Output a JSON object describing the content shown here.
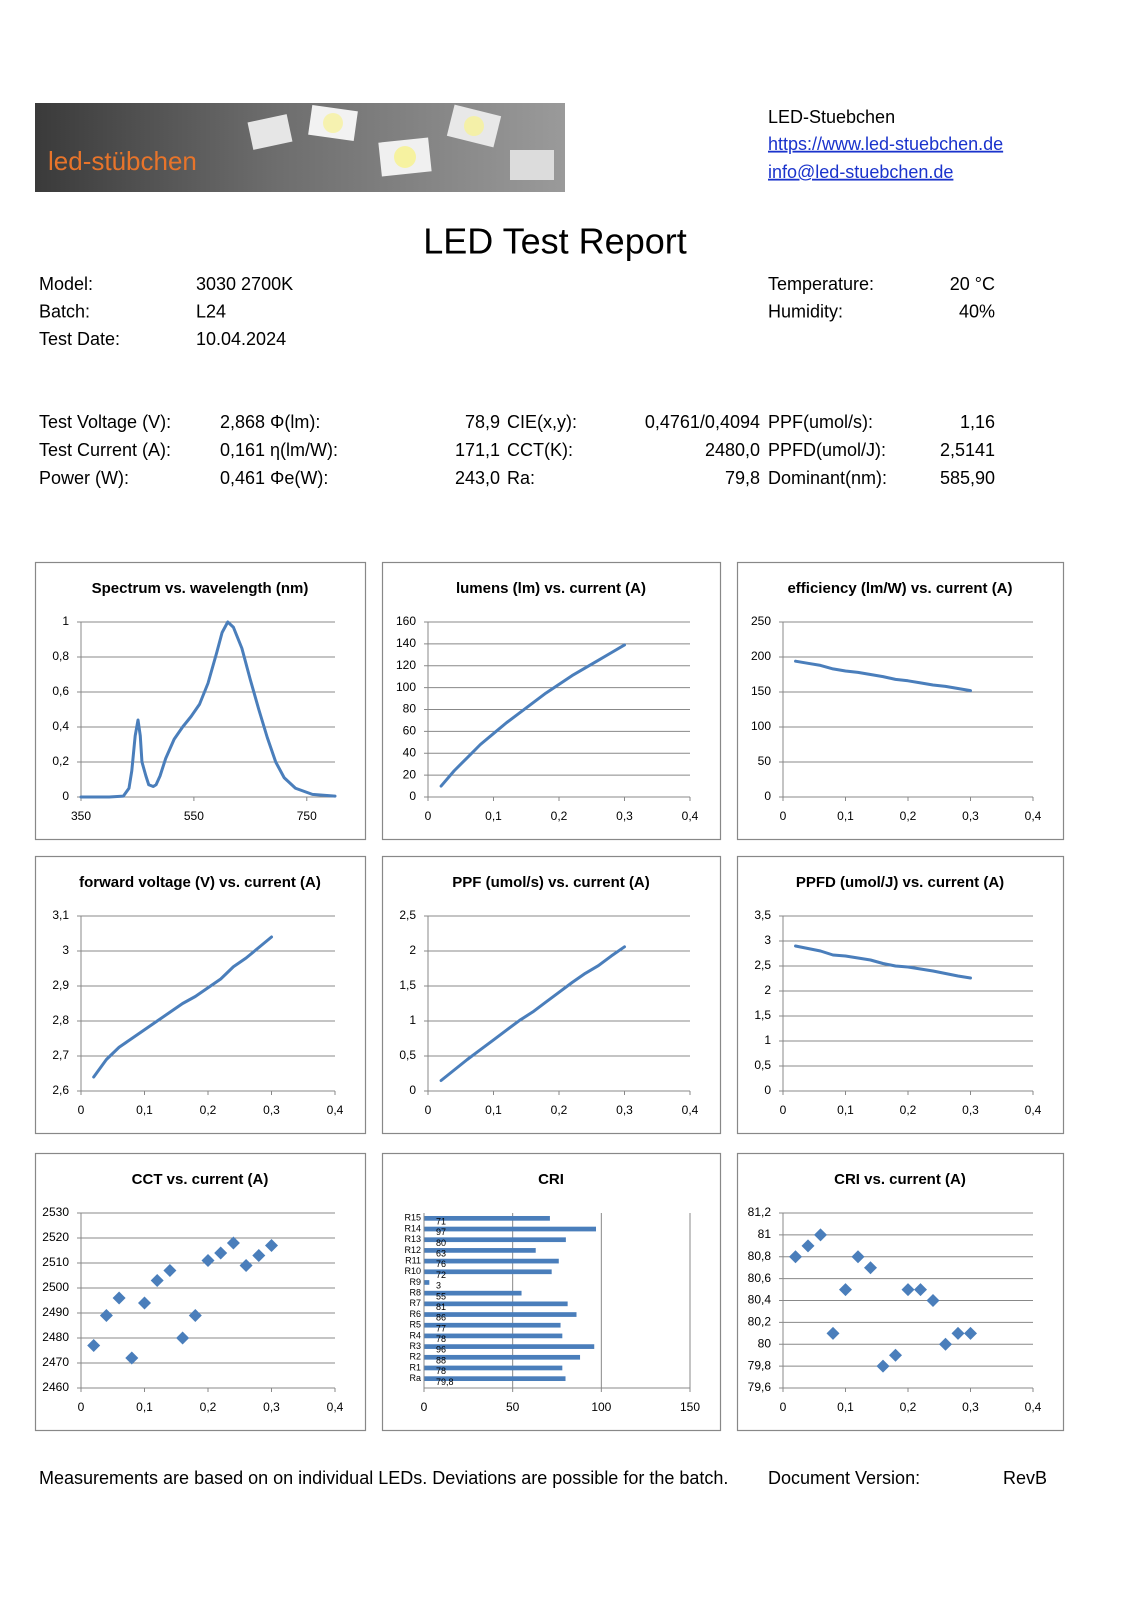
{
  "header": {
    "logo": "led-stübchen",
    "company": "LED-Stuebchen",
    "website": "https://www.led-stuebchen.de",
    "email": "info@led-stuebchen.de"
  },
  "title": "LED Test Report",
  "info": {
    "left": [
      [
        "Model:",
        "3030 2700K"
      ],
      [
        "Batch:",
        "L24"
      ],
      [
        "Test Date:",
        "10.04.2024"
      ]
    ],
    "right": [
      [
        "Temperature:",
        "20 °C"
      ],
      [
        "Humidity:",
        "40%"
      ]
    ]
  },
  "measurements": [
    [
      "Test Voltage (V):",
      "2,868",
      "Φ(lm):",
      "78,9",
      "CIE(x,y):",
      "0,4761/0,4094",
      "PPF(umol/s):",
      "1,16"
    ],
    [
      "Test Current (A):",
      "0,161",
      "η(lm/W):",
      "171,1",
      "CCT(K):",
      "2480,0",
      "PPFD(umol/J):",
      "2,5141"
    ],
    [
      "Power (W):",
      "0,461",
      "Φe(W):",
      "243,0",
      "Ra:",
      "79,8",
      "Dominant(nm):",
      "585,90"
    ]
  ],
  "chart_data": [
    {
      "type": "line",
      "title": "Spectrum vs. wavelength (nm)",
      "color": "#4a7ebb",
      "grid": true,
      "x": [
        350,
        400,
        425,
        435,
        440,
        446,
        451,
        455,
        458,
        465,
        470,
        478,
        483,
        490,
        500,
        515,
        530,
        545,
        560,
        575,
        590,
        600,
        610,
        620,
        635,
        650,
        665,
        680,
        695,
        710,
        730,
        760,
        800
      ],
      "values": [
        0,
        0,
        0.005,
        0.05,
        0.15,
        0.35,
        0.44,
        0.35,
        0.2,
        0.12,
        0.07,
        0.06,
        0.07,
        0.12,
        0.22,
        0.33,
        0.4,
        0.46,
        0.53,
        0.65,
        0.82,
        0.94,
        1,
        0.97,
        0.85,
        0.67,
        0.5,
        0.34,
        0.2,
        0.11,
        0.05,
        0.015,
        0.005
      ],
      "xlim": [
        350,
        800
      ],
      "xticks": [
        350,
        550,
        750
      ],
      "ylim": [
        0,
        1
      ],
      "yticks": [
        0,
        {
          "value": 0.2,
          "label": "0,2"
        },
        {
          "value": 0.4,
          "label": "0,4"
        },
        {
          "value": 0.6,
          "label": "0,6"
        },
        {
          "value": 0.8,
          "label": "0,8"
        },
        1
      ]
    },
    {
      "type": "line",
      "title": "lumens (lm) vs. current (A)",
      "color": "#4a7ebb",
      "grid": true,
      "x": [
        0.02,
        0.04,
        0.06,
        0.08,
        0.1,
        0.12,
        0.14,
        0.16,
        0.18,
        0.2,
        0.22,
        0.24,
        0.26,
        0.28,
        0.3
      ],
      "values": [
        10,
        24,
        36,
        48,
        58,
        68,
        77,
        86,
        95,
        103,
        111,
        118,
        125,
        132,
        139
      ],
      "xlim": [
        0,
        0.4
      ],
      "xticks": [
        0,
        {
          "value": 0.1,
          "label": "0,1"
        },
        {
          "value": 0.2,
          "label": "0,2"
        },
        {
          "value": 0.3,
          "label": "0,3"
        },
        {
          "value": 0.4,
          "label": "0,4"
        }
      ],
      "ylim": [
        0,
        160
      ],
      "yticks": [
        0,
        20,
        40,
        60,
        80,
        100,
        120,
        140,
        160
      ]
    },
    {
      "type": "line",
      "title": "efficiency (lm/W) vs. current (A)",
      "color": "#4a7ebb",
      "grid": true,
      "x": [
        0.02,
        0.04,
        0.06,
        0.08,
        0.1,
        0.12,
        0.14,
        0.16,
        0.18,
        0.2,
        0.22,
        0.24,
        0.26,
        0.28,
        0.3
      ],
      "values": [
        194,
        191,
        188,
        183,
        180,
        178,
        175,
        172,
        168,
        166,
        163,
        160,
        158,
        155,
        152
      ],
      "xlim": [
        0,
        0.4
      ],
      "xticks": [
        0,
        {
          "value": 0.1,
          "label": "0,1"
        },
        {
          "value": 0.2,
          "label": "0,2"
        },
        {
          "value": 0.3,
          "label": "0,3"
        },
        {
          "value": 0.4,
          "label": "0,4"
        }
      ],
      "ylim": [
        0,
        250
      ],
      "yticks": [
        0,
        50,
        100,
        150,
        200,
        250
      ]
    },
    {
      "type": "line",
      "title": "forward voltage (V) vs. current (A)",
      "color": "#4a7ebb",
      "grid": true,
      "x": [
        0.02,
        0.04,
        0.06,
        0.08,
        0.1,
        0.12,
        0.14,
        0.16,
        0.18,
        0.2,
        0.22,
        0.24,
        0.26,
        0.28,
        0.3
      ],
      "values": [
        2.64,
        2.69,
        2.725,
        2.75,
        2.775,
        2.8,
        2.825,
        2.85,
        2.87,
        2.895,
        2.92,
        2.955,
        2.98,
        3.01,
        3.04
      ],
      "xlim": [
        0,
        0.4
      ],
      "xticks": [
        0,
        {
          "value": 0.1,
          "label": "0,1"
        },
        {
          "value": 0.2,
          "label": "0,2"
        },
        {
          "value": 0.3,
          "label": "0,3"
        },
        {
          "value": 0.4,
          "label": "0,4"
        }
      ],
      "ylim": [
        2.6,
        3.1
      ],
      "yticks": [
        {
          "value": 2.6,
          "label": "2,6"
        },
        {
          "value": 2.7,
          "label": "2,7"
        },
        {
          "value": 2.8,
          "label": "2,8"
        },
        {
          "value": 2.9,
          "label": "2,9"
        },
        3,
        {
          "value": 3.1,
          "label": "3,1"
        }
      ]
    },
    {
      "type": "line",
      "title": "PPF (umol/s) vs. current (A)",
      "color": "#4a7ebb",
      "grid": true,
      "x": [
        0.02,
        0.04,
        0.06,
        0.08,
        0.1,
        0.12,
        0.14,
        0.16,
        0.18,
        0.2,
        0.22,
        0.24,
        0.26,
        0.28,
        0.3
      ],
      "values": [
        0.15,
        0.3,
        0.45,
        0.59,
        0.73,
        0.87,
        1.01,
        1.13,
        1.27,
        1.41,
        1.55,
        1.68,
        1.79,
        1.93,
        2.06
      ],
      "xlim": [
        0,
        0.4
      ],
      "xticks": [
        0,
        {
          "value": 0.1,
          "label": "0,1"
        },
        {
          "value": 0.2,
          "label": "0,2"
        },
        {
          "value": 0.3,
          "label": "0,3"
        },
        {
          "value": 0.4,
          "label": "0,4"
        }
      ],
      "ylim": [
        0,
        2.5
      ],
      "yticks": [
        0,
        {
          "value": 0.5,
          "label": "0,5"
        },
        1,
        {
          "value": 1.5,
          "label": "1,5"
        },
        2,
        {
          "value": 2.5,
          "label": "2,5"
        }
      ]
    },
    {
      "type": "line",
      "title": "PPFD (umol/J) vs. current (A)",
      "color": "#4a7ebb",
      "grid": true,
      "x": [
        0.02,
        0.04,
        0.06,
        0.08,
        0.1,
        0.12,
        0.14,
        0.16,
        0.18,
        0.2,
        0.22,
        0.24,
        0.26,
        0.28,
        0.3
      ],
      "values": [
        2.9,
        2.85,
        2.8,
        2.72,
        2.7,
        2.66,
        2.62,
        2.55,
        2.5,
        2.48,
        2.44,
        2.4,
        2.35,
        2.3,
        2.26
      ],
      "xlim": [
        0,
        0.4
      ],
      "xticks": [
        0,
        {
          "value": 0.1,
          "label": "0,1"
        },
        {
          "value": 0.2,
          "label": "0,2"
        },
        {
          "value": 0.3,
          "label": "0,3"
        },
        {
          "value": 0.4,
          "label": "0,4"
        }
      ],
      "ylim": [
        0,
        3.5
      ],
      "yticks": [
        0,
        {
          "value": 0.5,
          "label": "0,5"
        },
        1,
        {
          "value": 1.5,
          "label": "1,5"
        },
        2,
        {
          "value": 2.5,
          "label": "2,5"
        },
        3,
        {
          "value": 3.5,
          "label": "3,5"
        }
      ]
    },
    {
      "type": "scatter",
      "title": "CCT vs. current (A)",
      "color": "#4a7ebb",
      "grid": true,
      "x": [
        0.02,
        0.04,
        0.06,
        0.08,
        0.1,
        0.12,
        0.14,
        0.16,
        0.18,
        0.2,
        0.22,
        0.24,
        0.26,
        0.28,
        0.3
      ],
      "values": [
        2477,
        2489,
        2496,
        2472,
        2494,
        2503,
        2507,
        2480,
        2489,
        2511,
        2514,
        2518,
        2509,
        2513,
        2517
      ],
      "xlim": [
        0,
        0.4
      ],
      "xticks": [
        0,
        {
          "value": 0.1,
          "label": "0,1"
        },
        {
          "value": 0.2,
          "label": "0,2"
        },
        {
          "value": 0.3,
          "label": "0,3"
        },
        {
          "value": 0.4,
          "label": "0,4"
        }
      ],
      "ylim": [
        2460,
        2530
      ],
      "yticks": [
        2460,
        2470,
        2480,
        2490,
        2500,
        2510,
        2520,
        2530
      ]
    },
    {
      "type": "bar",
      "orientation": "horizontal",
      "title": "CRI",
      "color": "#4a7ebb",
      "grid": true,
      "categories": [
        "R15",
        "R14",
        "R13",
        "R12",
        "R11",
        "R10",
        "R9",
        "R8",
        "R7",
        "R6",
        "R5",
        "R4",
        "R3",
        "R2",
        "R1",
        "Ra"
      ],
      "values": [
        71,
        97,
        80,
        63,
        76,
        72,
        3,
        55,
        81,
        86,
        77,
        78,
        96,
        88,
        78,
        79.8
      ],
      "value_labels": [
        "71",
        "97",
        "80",
        "63",
        "76",
        "72",
        "3",
        "55",
        "81",
        "86",
        "77",
        "78",
        "96",
        "88",
        "78",
        "79,8"
      ],
      "xlim": [
        0,
        150
      ],
      "xticks": [
        0,
        50,
        100,
        150
      ]
    },
    {
      "type": "scatter",
      "title": "CRI vs. current (A)",
      "color": "#4a7ebb",
      "grid": true,
      "x": [
        0.02,
        0.04,
        0.06,
        0.08,
        0.1,
        0.12,
        0.14,
        0.16,
        0.18,
        0.2,
        0.22,
        0.24,
        0.26,
        0.28,
        0.3
      ],
      "values": [
        80.8,
        80.9,
        81,
        80.1,
        80.5,
        80.8,
        80.7,
        79.8,
        79.9,
        80.5,
        80.5,
        80.4,
        80,
        80.1,
        80.1
      ],
      "xlim": [
        0,
        0.4
      ],
      "xticks": [
        0,
        {
          "value": 0.1,
          "label": "0,1"
        },
        {
          "value": 0.2,
          "label": "0,2"
        },
        {
          "value": 0.3,
          "label": "0,3"
        },
        {
          "value": 0.4,
          "label": "0,4"
        }
      ],
      "ylim": [
        79.6,
        81.2
      ],
      "yticks": [
        {
          "value": 79.6,
          "label": "79,6"
        },
        {
          "value": 79.8,
          "label": "79,8"
        },
        80,
        {
          "value": 80.2,
          "label": "80,2"
        },
        {
          "value": 80.4,
          "label": "80,4"
        },
        {
          "value": 80.6,
          "label": "80,6"
        },
        {
          "value": 80.8,
          "label": "80,8"
        },
        81,
        {
          "value": 81.2,
          "label": "81,2"
        }
      ]
    }
  ],
  "footer": {
    "note": "Measurements are based on on individual LEDs. Deviations are possible for the batch.",
    "version_label": "Document Version:",
    "version": "RevB"
  }
}
